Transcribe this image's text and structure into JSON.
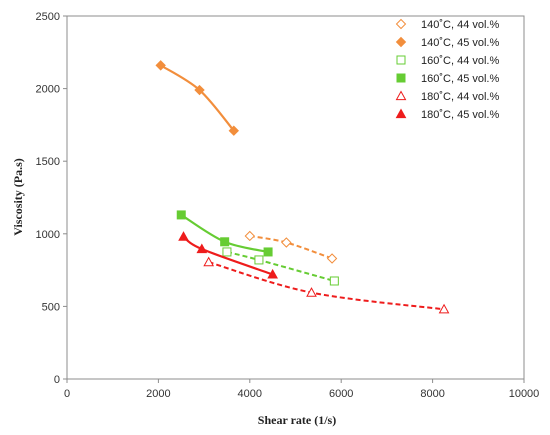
{
  "chart_data": {
    "type": "scatter",
    "xlabel": "Shear rate (1/s)",
    "ylabel": "Viscosity (Pa.s)",
    "xlim": [
      0,
      10000
    ],
    "ylim": [
      0,
      2500
    ],
    "xticks": [
      0,
      2000,
      4000,
      6000,
      8000,
      10000
    ],
    "yticks": [
      0,
      500,
      1000,
      1500,
      2000,
      2500
    ],
    "xtick_labels": [
      "0",
      "2000",
      "4000",
      "6000",
      "8000",
      "10000"
    ],
    "ytick_labels": [
      "0",
      "500",
      "1000",
      "1500",
      "2000",
      "2500"
    ],
    "grid": false,
    "legend_position": "top-right",
    "series": [
      {
        "name": "140˚C, 44 vol.%",
        "color": "#f28e3c",
        "marker": "diamond-open",
        "line": "dashed",
        "x": [
          4000,
          4800,
          5800
        ],
        "y": [
          985,
          940,
          830
        ]
      },
      {
        "name": "140˚C, 45 vol.%",
        "color": "#f28e3c",
        "marker": "diamond-filled",
        "line": "solid",
        "x": [
          2050,
          2900,
          3650
        ],
        "y": [
          2160,
          1990,
          1710
        ]
      },
      {
        "name": "160˚C, 44 vol.%",
        "color": "#66cc33",
        "marker": "square-open",
        "line": "dashed",
        "x": [
          3500,
          4200,
          5850
        ],
        "y": [
          875,
          820,
          675
        ]
      },
      {
        "name": "160˚C, 45 vol.%",
        "color": "#66cc33",
        "marker": "square-filled",
        "line": "solid",
        "x": [
          2500,
          3450,
          4400
        ],
        "y": [
          1130,
          945,
          875
        ]
      },
      {
        "name": "180˚C, 44 vol.%",
        "color": "#ee1c1c",
        "marker": "triangle-open",
        "line": "dashed",
        "x": [
          3100,
          5350,
          8250
        ],
        "y": [
          805,
          595,
          480
        ]
      },
      {
        "name": "180˚C, 45 vol.%",
        "color": "#ee1c1c",
        "marker": "triangle-filled",
        "line": "solid",
        "x": [
          2550,
          2950,
          4500
        ],
        "y": [
          980,
          895,
          720
        ]
      }
    ]
  }
}
